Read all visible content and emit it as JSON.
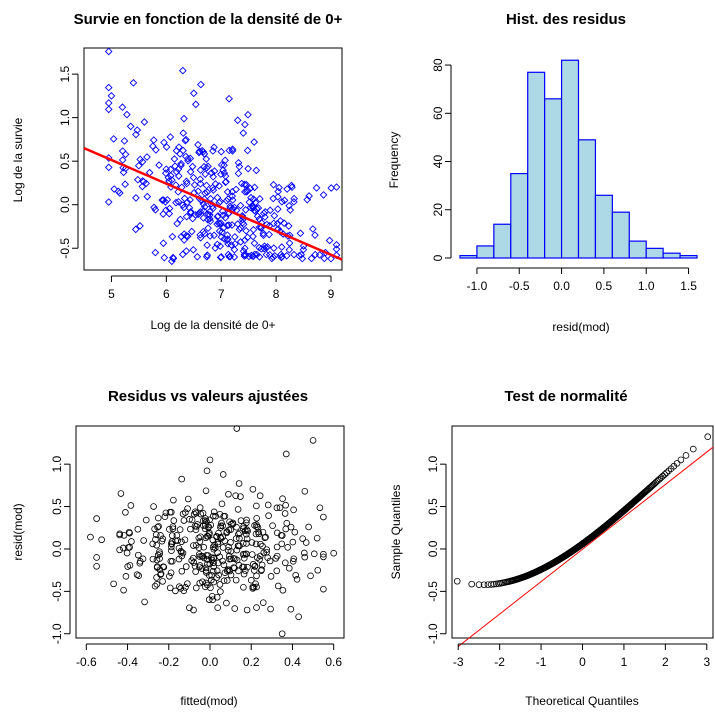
{
  "figure": {
    "layout": "2x2 grid of R base-graphics panels",
    "background": "#ffffff"
  },
  "chart_data": [
    {
      "type": "scatter",
      "title": "Survie en fonction de la densité de 0+",
      "xlabel": "Log de la densité de 0+",
      "ylabel": "Log de la survie",
      "xlim": [
        4.5,
        9.2
      ],
      "ylim": [
        -0.75,
        1.8
      ],
      "xticks": [
        "5",
        "6",
        "7",
        "8",
        "9"
      ],
      "yticks": [
        "-0.5",
        "0.0",
        "0.5",
        "1.0",
        "1.5"
      ],
      "point_color": "#0000ff",
      "marker": "open diamond",
      "n_points_approx": 400,
      "seed_points": [
        [
          4.95,
          1.76
        ],
        [
          5.0,
          1.25
        ],
        [
          5.2,
          1.12
        ],
        [
          5.4,
          1.4
        ],
        [
          6.3,
          1.54
        ],
        [
          6.5,
          1.28
        ],
        [
          7.3,
          0.97
        ],
        [
          5.6,
          0.95
        ],
        [
          8.6,
          0.1
        ],
        [
          8.2,
          0.18
        ],
        [
          9.0,
          -0.62
        ],
        [
          8.9,
          -0.55
        ],
        [
          5.05,
          0.18
        ],
        [
          5.35,
          0.9
        ],
        [
          7.6,
          0.72
        ],
        [
          5.8,
          -0.55
        ],
        [
          6.1,
          -0.65
        ],
        [
          7.0,
          -0.6
        ]
      ],
      "regression_line": {
        "color": "#ff0000",
        "points": [
          [
            4.5,
            0.65
          ],
          [
            9.2,
            -0.63
          ]
        ]
      }
    },
    {
      "type": "bar",
      "subtype": "histogram",
      "title": "Hist. des residus",
      "xlabel": "resid(mod)",
      "ylabel": "Frequency",
      "bin_edges": [
        -1.2,
        -1.0,
        -0.8,
        -0.6,
        -0.4,
        -0.2,
        0.0,
        0.2,
        0.4,
        0.6,
        0.8,
        1.0,
        1.2,
        1.4,
        1.6
      ],
      "values": [
        1,
        5,
        14,
        35,
        77,
        66,
        82,
        49,
        26,
        19,
        7,
        4,
        2,
        1
      ],
      "xticks": [
        "-1.0",
        "-0.5",
        "0.0",
        "0.5",
        "1.0",
        "1.5"
      ],
      "yticks": [
        "0",
        "20",
        "40",
        "60",
        "80"
      ],
      "xlim": [
        -1.2,
        1.6
      ],
      "ylim": [
        0,
        85
      ],
      "fill_color": "#add8e6",
      "edge_color": "#0000ff"
    },
    {
      "type": "scatter",
      "title": "Residus vs valeurs ajustées",
      "xlabel": "fitted(mod)",
      "ylabel": "resid(mod)",
      "xlim": [
        -0.65,
        0.65
      ],
      "ylim": [
        -1.05,
        1.45
      ],
      "xticks": [
        "-0.6",
        "-0.4",
        "-0.2",
        "0.0",
        "0.2",
        "0.4",
        "0.6"
      ],
      "yticks": [
        "-1.0",
        "-0.5",
        "0.0",
        "0.5",
        "1.0"
      ],
      "point_color": "#000000",
      "marker": "open circle",
      "n_points_approx": 400,
      "seed_points": [
        [
          0.13,
          1.42
        ],
        [
          0.5,
          1.28
        ],
        [
          -0.58,
          0.14
        ],
        [
          0.6,
          -0.05
        ],
        [
          0.35,
          -1.0
        ],
        [
          0.43,
          -0.8
        ],
        [
          -0.55,
          -0.1
        ],
        [
          0.0,
          1.05
        ],
        [
          0.37,
          1.12
        ],
        [
          0.46,
          0.68
        ],
        [
          -0.08,
          -0.72
        ],
        [
          0.18,
          -0.72
        ]
      ]
    },
    {
      "type": "scatter",
      "subtype": "normal-qq",
      "title": "Test de normalité",
      "xlabel": "Theoretical Quantiles",
      "ylabel": "Sample Quantiles",
      "xlim": [
        -3.15,
        3.15
      ],
      "ylim": [
        -1.05,
        1.45
      ],
      "xticks": [
        "-3",
        "-2",
        "-1",
        "0",
        "1",
        "2",
        "3"
      ],
      "yticks": [
        "-1.0",
        "-0.5",
        "0.0",
        "0.5",
        "1.0"
      ],
      "point_color": "#000000",
      "marker": "open circle",
      "n_points_approx": 400,
      "qq_line": {
        "color": "#ff0000",
        "points": [
          [
            -3.0,
            -1.15
          ],
          [
            3.15,
            1.2
          ]
        ]
      }
    }
  ]
}
